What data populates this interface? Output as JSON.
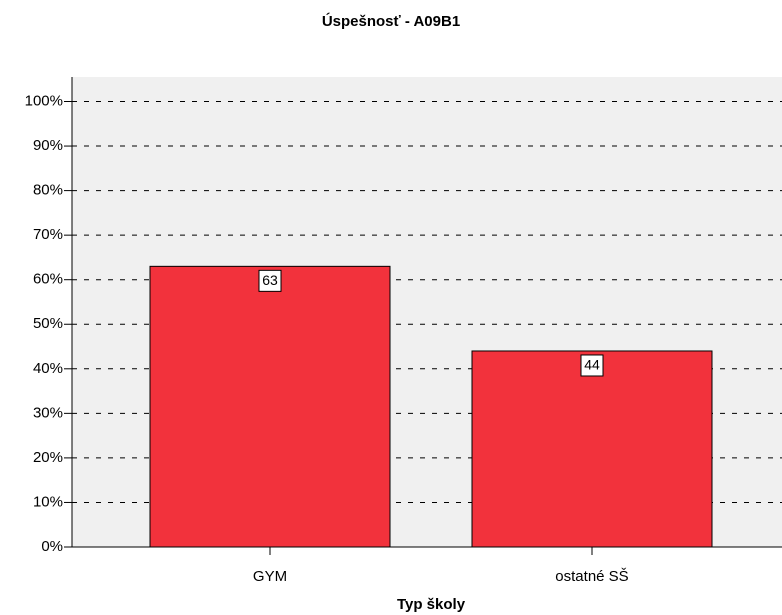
{
  "chart_data": {
    "type": "bar",
    "title": "Úspešnosť - A09B1",
    "x_label": "Typ školy",
    "categories": [
      "GYM",
      "ostatné SŠ"
    ],
    "values": [
      63,
      44
    ],
    "color": "#f2323c",
    "ylim": [
      0,
      105.5
    ],
    "yticks": [
      {
        "value": 0,
        "label": "0%"
      },
      {
        "value": 10,
        "label": "10%"
      },
      {
        "value": 20,
        "label": "20%"
      },
      {
        "value": 30,
        "label": "30%"
      },
      {
        "value": 40,
        "label": "40%"
      },
      {
        "value": 50,
        "label": "50%"
      },
      {
        "value": 60,
        "label": "60%"
      },
      {
        "value": 70,
        "label": "70%"
      },
      {
        "value": 80,
        "label": "80%"
      },
      {
        "value": 90,
        "label": "90%"
      },
      {
        "value": 100,
        "label": "100%"
      }
    ],
    "grid": true
  }
}
